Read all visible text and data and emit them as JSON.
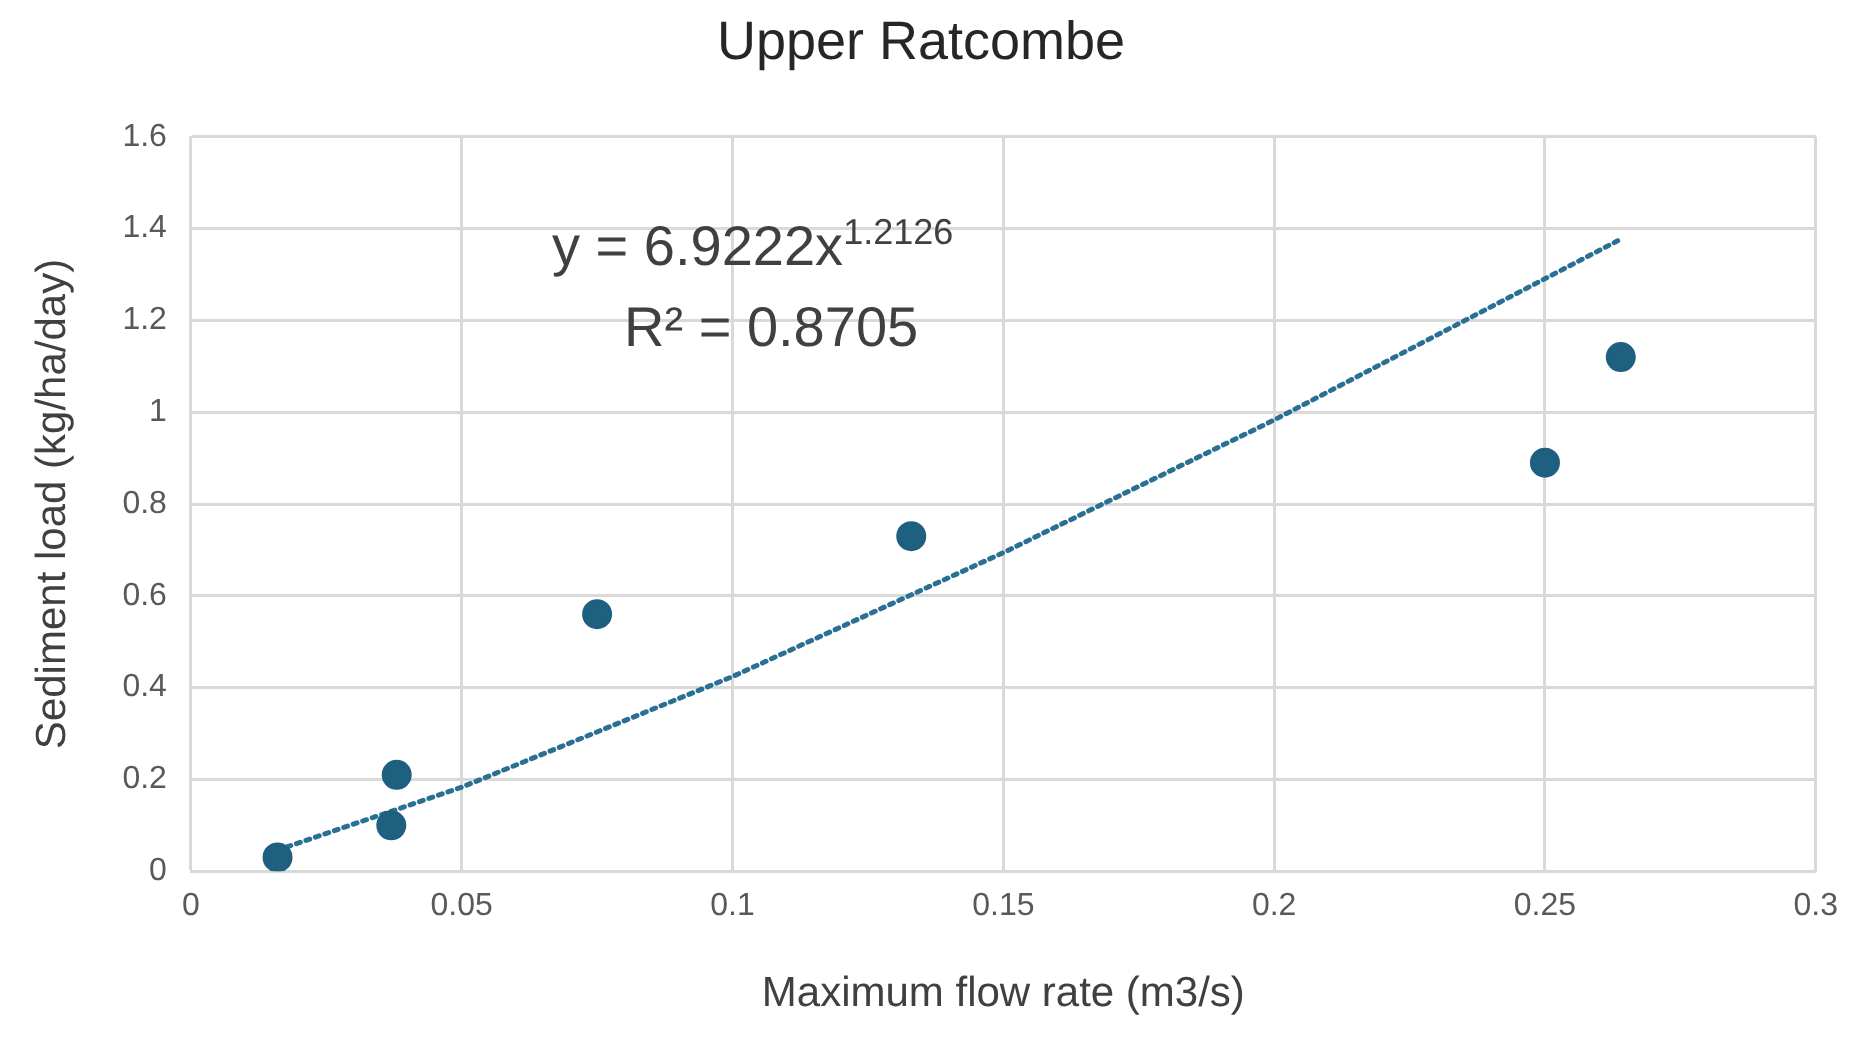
{
  "chart_data": {
    "type": "scatter",
    "title": "Upper Ratcombe",
    "xlabel": "Maximum flow rate (m3/s)",
    "ylabel": "Sediment load (kg/ha/day)",
    "annotations": [
      "y = 6.9222x$^{1.2126}$",
      "R² = 0.8705"
    ],
    "xlim": [
      0,
      0.3
    ],
    "xticks": [
      0,
      0.05,
      0.1,
      0.15,
      0.2,
      0.25,
      0.3
    ],
    "ylim": [
      0,
      1.6
    ],
    "yticks": [
      0,
      0.2,
      0.4,
      0.6,
      0.8,
      1,
      1.2,
      1.4,
      1.6
    ],
    "grid": true,
    "series": [
      {
        "type": "scatter",
        "color": "#1f5f7f",
        "marker": "circle",
        "x": [
          0.016,
          0.037,
          0.038,
          0.075,
          0.133,
          0.25,
          0.264
        ],
        "values": [
          0.03,
          0.1,
          0.21,
          0.56,
          0.73,
          0.89,
          1.12
        ]
      },
      {
        "type": "line",
        "color": "#2a6f94",
        "marker": "none",
        "line_style": "dotted",
        "x": [
          0.016,
          0.05,
          0.1,
          0.15,
          0.2,
          0.264
        ],
        "values": [
          0.046,
          0.183,
          0.424,
          0.694,
          0.983,
          1.377
        ]
      }
    ]
  }
}
